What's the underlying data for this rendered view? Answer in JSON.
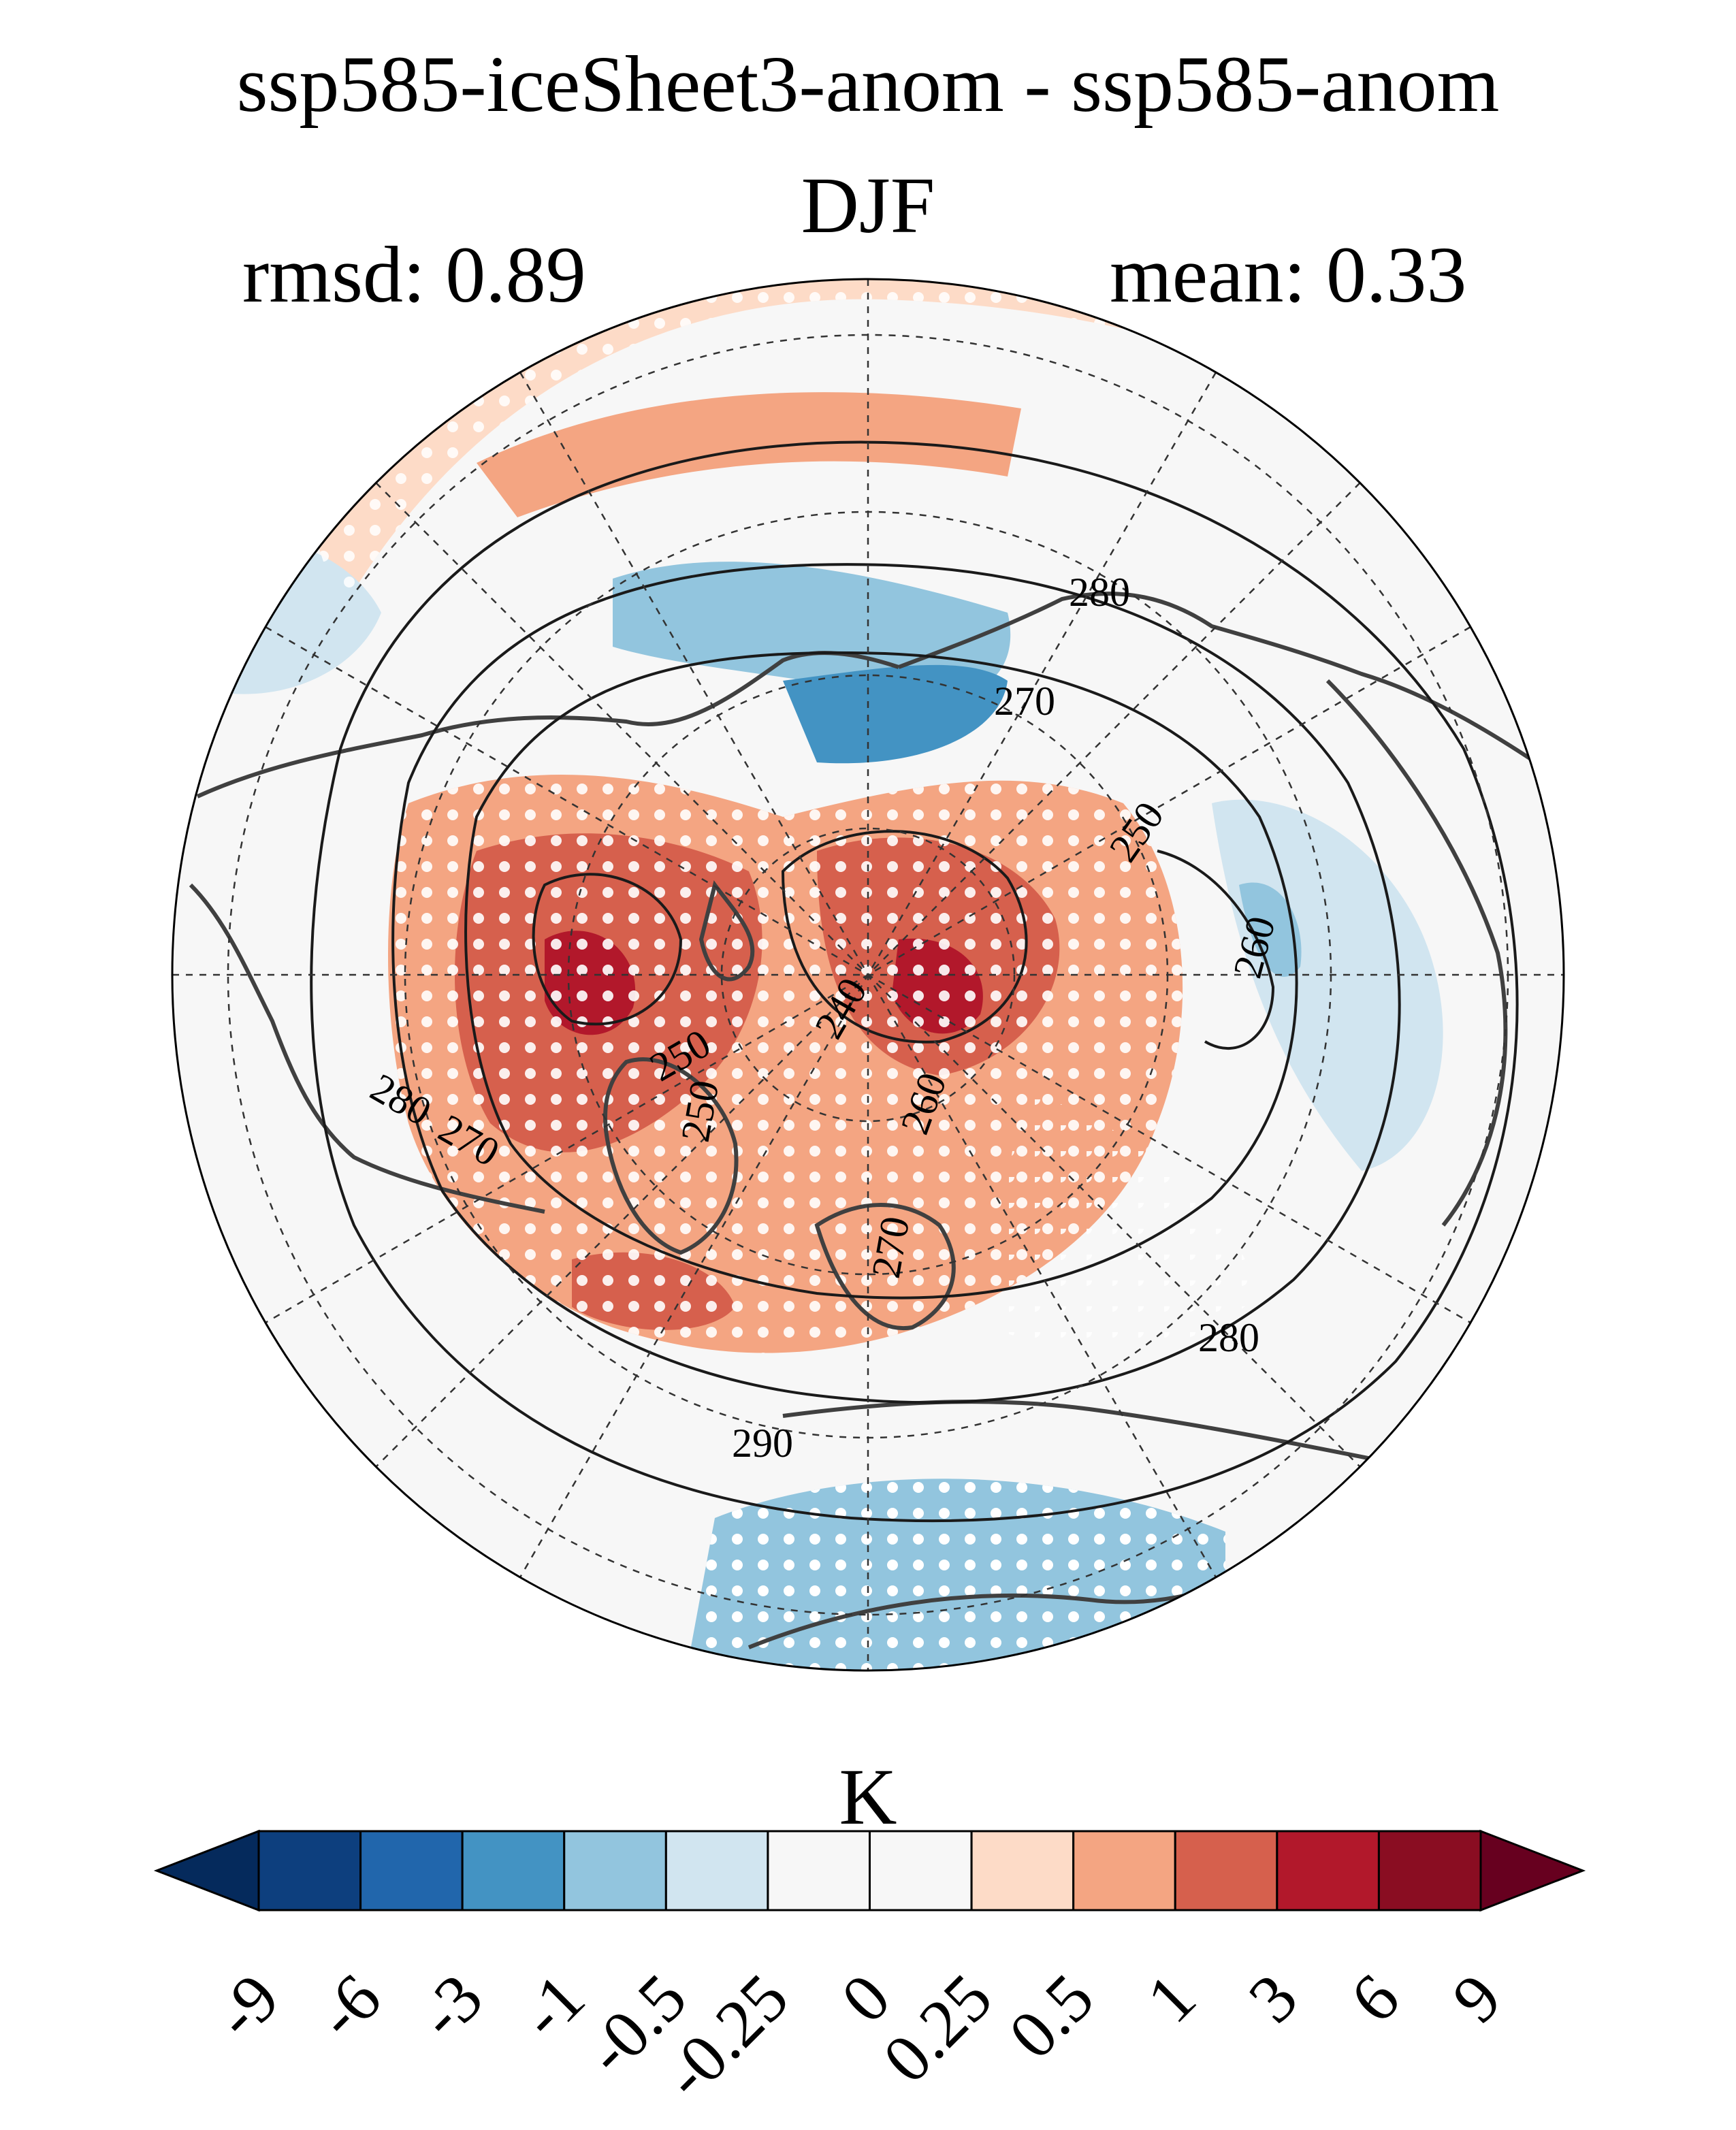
{
  "title": "ssp585-iceSheet3-anom - ssp585-anom",
  "season": "DJF",
  "stats": {
    "rmsd": "rmsd: 0.89",
    "mean": "mean: 0.33"
  },
  "colorbar": {
    "unit": "K",
    "ticks": [
      "-9",
      "-6",
      "-3",
      "-1",
      "-0.5",
      "-0.25",
      "0",
      "0.25",
      "0.5",
      "1",
      "3",
      "6",
      "9"
    ],
    "colors": [
      "#052a5c",
      "#0d3f7e",
      "#2166ac",
      "#4393c3",
      "#92c5de",
      "#d1e5f0",
      "#f7f7f7",
      "#f7f7f7",
      "#fddbc7",
      "#f4a582",
      "#d6604d",
      "#b2182b",
      "#8a0d22",
      "#67001f"
    ],
    "extend": "both"
  },
  "contour_labels": [
    "280",
    "270",
    "250",
    "260",
    "240",
    "250",
    "280",
    "270",
    "250",
    "260",
    "270",
    "280",
    "290"
  ],
  "map": {
    "projection": "north-polar-stereographic",
    "significance_stippling": "white dots",
    "colors": {
      "ocean_bg": "#f7f7f7",
      "warm": "#d6604d",
      "strong_warm": "#b2182b",
      "light_warm": "#fddbc7",
      "mid_warm": "#f4a582",
      "cool": "#92c5de",
      "mid_cool": "#4393c3",
      "light_cool": "#d1e5f0"
    }
  }
}
